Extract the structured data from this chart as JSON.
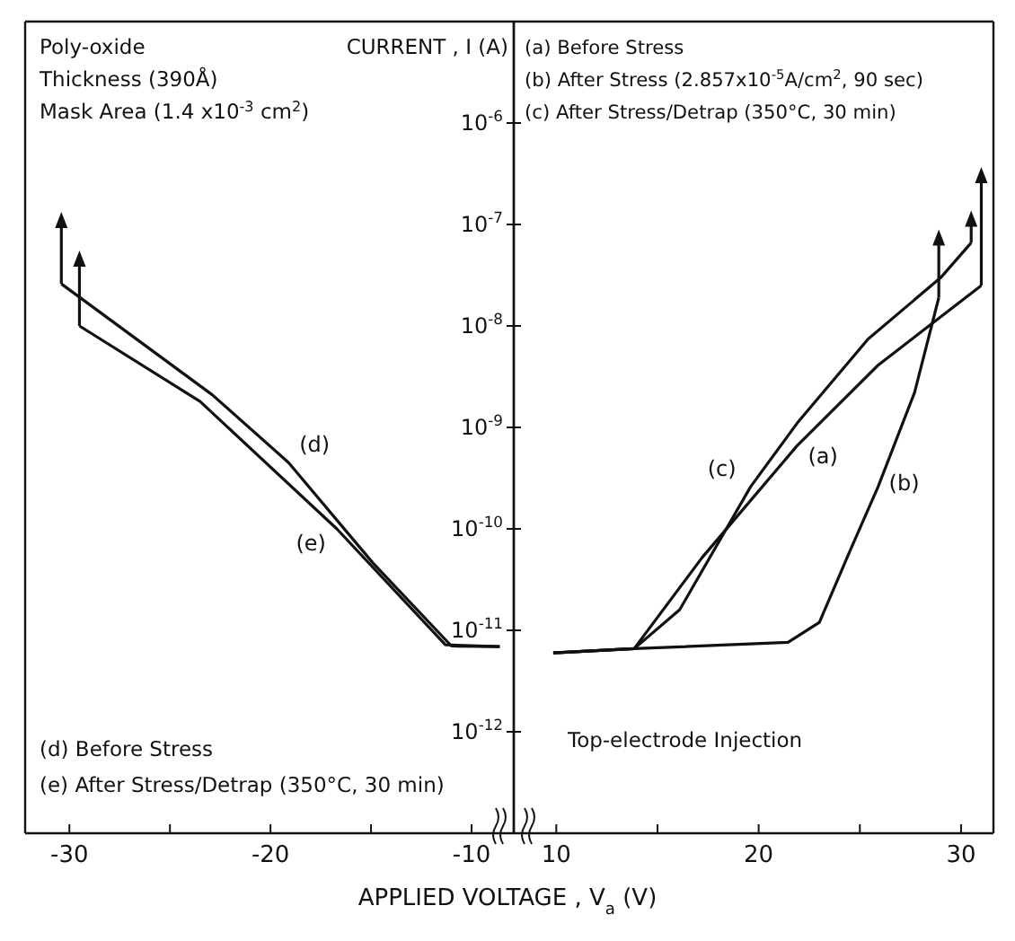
{
  "chart_data": [
    {
      "type": "line",
      "ylabel": "CURRENT , I (A)",
      "xlabel": "APPLIED VOLTAGE , V$_{a}$ (V)",
      "log": "y",
      "xlim": [
        -32.2,
        -7.9
      ],
      "ylim": [
        1e-13,
        1e-05
      ],
      "xticks": [
        -30,
        {
          "value": -25,
          "label": null
        },
        -20,
        {
          "value": -15,
          "label": null
        },
        -10
      ],
      "yticks": [
        {
          "value": 1e-12,
          "label": "10$^{-12}$"
        },
        {
          "value": 1e-11,
          "label": "10$^{-11}$"
        },
        {
          "value": 1e-10,
          "label": "10$^{-10}$"
        },
        {
          "value": 1e-09,
          "label": "10$^{-9}$"
        },
        {
          "value": 1e-08,
          "label": "10$^{-8}$"
        },
        {
          "value": 1e-07,
          "label": "10$^{-7}$"
        },
        {
          "value": 1e-06,
          "label": "10$^{-6}$"
        }
      ],
      "grid": false,
      "marker": "none",
      "line_style": "solid",
      "annotations": [
        "Poly-oxide",
        "Thickness (390Å)",
        "Mask Area (1.4 x10$^{-3}$ cm$^{2}$)",
        "(d) Before Stress",
        "(e) After Stress/Detrap (350°C, 30 min)"
      ],
      "series": [
        {
          "name": "(d)",
          "color": "#111111",
          "x": [
            -30.4,
            -22.9,
            -19.1,
            -14.9,
            -11.0,
            -8.6
          ],
          "values": [
            2.6e-08,
            2.1e-09,
            4.5e-10,
            4.6e-11,
            7e-12,
            6.9e-12
          ]
        },
        {
          "name": "(e)",
          "color": "#111111",
          "x": [
            -29.5,
            -23.5,
            -16.7,
            -11.3,
            -8.6
          ],
          "values": [
            1e-08,
            1.8e-09,
            1e-10,
            7.2e-12,
            6.9e-12
          ]
        }
      ]
    },
    {
      "type": "line",
      "log": "y",
      "xlim": [
        7.9,
        31.6
      ],
      "ylim": [
        1e-13,
        1e-05
      ],
      "tick_labels": "x",
      "xticks": [
        10,
        {
          "value": 15,
          "label": null
        },
        20,
        {
          "value": 25,
          "label": null
        },
        30
      ],
      "yticks": [
        {
          "value": 1e-12,
          "label": null
        },
        {
          "value": 1e-11,
          "label": null
        },
        {
          "value": 1e-10,
          "label": null
        },
        {
          "value": 1e-09,
          "label": null
        },
        {
          "value": 1e-08,
          "label": null
        },
        {
          "value": 1e-07,
          "label": null
        },
        {
          "value": 1e-06,
          "label": null
        }
      ],
      "grid": false,
      "marker": "none",
      "line_style": "solid",
      "annotations": [
        "(a) Before Stress",
        "(b) After Stress (2.857x10$^{-5}$A/cm$^{2}$, 90 sec)",
        "(c) After Stress/Detrap (350°C, 30 min)",
        "Top-electrode Injection"
      ],
      "series": [
        {
          "name": "(a)",
          "color": "#111111",
          "x": [
            9.85,
            13.85,
            17.2,
            21.9,
            25.9,
            31.0
          ],
          "values": [
            6e-12,
            6.6e-12,
            5.2e-11,
            6.6e-10,
            4.1e-09,
            2.5e-08
          ]
        },
        {
          "name": "(b)",
          "color": "#111111",
          "x": [
            9.85,
            13.85,
            21.45,
            23.0,
            24.5,
            25.9,
            27.7,
            28.9
          ],
          "values": [
            6e-12,
            6.6e-12,
            7.6e-12,
            1.2e-11,
            6e-11,
            2.6e-10,
            2.2e-09,
            1.9e-08
          ]
        },
        {
          "name": "(c)",
          "color": "#111111",
          "x": [
            9.85,
            13.85,
            16.1,
            19.6,
            21.9,
            25.4,
            29.0,
            30.5
          ],
          "values": [
            6e-12,
            6.6e-12,
            1.6e-11,
            2.6e-10,
            1.1e-09,
            7.4e-09,
            3e-08,
            6.6e-08
          ]
        }
      ]
    }
  ]
}
